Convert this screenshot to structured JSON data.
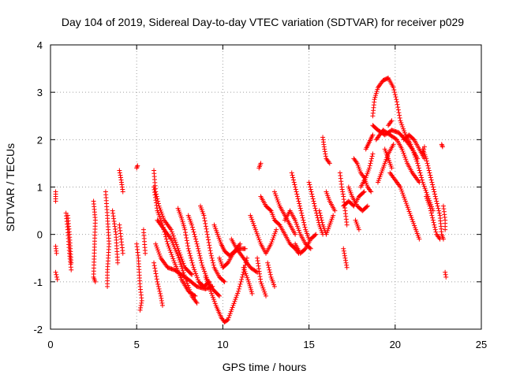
{
  "chart_data": {
    "type": "scatter",
    "title": "Day 104 of 2019, Sidereal Day-to-day VTEC variation (SDTVAR) for receiver p029",
    "xlabel": "GPS time / hours",
    "ylabel": "SDTVAR / TECUs",
    "xlim": [
      0,
      25
    ],
    "ylim": [
      -2,
      4
    ],
    "xticks": [
      0,
      5,
      10,
      15,
      20,
      25
    ],
    "yticks": [
      -2,
      -1,
      0,
      1,
      2,
      3,
      4
    ],
    "xtick_labels": [
      "0",
      "5",
      "10",
      "15",
      "20",
      "25"
    ],
    "ytick_labels": [
      "-2",
      "-1",
      "0",
      "1",
      "2",
      "3",
      "4"
    ],
    "grid": true,
    "marker": "+",
    "color": "#ff0000",
    "segments": [
      [
        [
          0.3,
          0.9
        ],
        [
          0.3,
          0.7
        ]
      ],
      [
        [
          0.3,
          -0.25
        ],
        [
          0.35,
          -0.4
        ]
      ],
      [
        [
          0.3,
          -0.8
        ],
        [
          0.4,
          -0.95
        ]
      ],
      [
        [
          0.9,
          0.45
        ],
        [
          1.0,
          0.1
        ],
        [
          1.1,
          -0.4
        ],
        [
          1.2,
          -0.75
        ]
      ],
      [
        [
          1.0,
          0.4
        ],
        [
          1.1,
          0.0
        ],
        [
          1.2,
          -0.6
        ]
      ],
      [
        [
          2.5,
          0.7
        ],
        [
          2.6,
          0.3
        ],
        [
          2.5,
          -0.9
        ],
        [
          2.6,
          -1.0
        ]
      ],
      [
        [
          3.2,
          0.9
        ],
        [
          3.3,
          0.4
        ],
        [
          3.4,
          -0.2
        ],
        [
          3.3,
          -0.8
        ],
        [
          3.3,
          -1.1
        ]
      ],
      [
        [
          3.6,
          0.5
        ],
        [
          3.8,
          0.0
        ],
        [
          3.9,
          -0.6
        ]
      ],
      [
        [
          4.0,
          1.35
        ],
        [
          4.1,
          1.15
        ],
        [
          4.2,
          0.9
        ]
      ],
      [
        [
          4.0,
          0.2
        ],
        [
          4.1,
          -0.1
        ],
        [
          4.2,
          -0.4
        ]
      ],
      [
        [
          5.0,
          1.4
        ],
        [
          5.05,
          1.45
        ]
      ],
      [
        [
          5.0,
          -0.2
        ],
        [
          5.1,
          -0.5
        ],
        [
          5.2,
          -1.1
        ],
        [
          5.3,
          -1.4
        ],
        [
          5.2,
          -1.6
        ]
      ],
      [
        [
          5.4,
          0.1
        ],
        [
          5.5,
          -0.4
        ]
      ],
      [
        [
          6.0,
          1.35
        ],
        [
          6.1,
          0.9
        ],
        [
          6.3,
          0.6
        ],
        [
          6.6,
          0.3
        ],
        [
          7.0,
          0.1
        ],
        [
          7.4,
          -0.3
        ],
        [
          7.8,
          -0.7
        ],
        [
          8.2,
          -0.85
        ]
      ],
      [
        [
          6.0,
          1.0
        ],
        [
          6.2,
          0.5
        ],
        [
          6.5,
          0.2
        ],
        [
          6.8,
          -0.2
        ],
        [
          7.2,
          -0.6
        ],
        [
          7.6,
          -0.95
        ],
        [
          8.0,
          -1.2
        ],
        [
          8.4,
          -1.3
        ]
      ],
      [
        [
          6.0,
          -0.6
        ],
        [
          6.2,
          -1.0
        ],
        [
          6.4,
          -1.3
        ],
        [
          6.5,
          -1.5
        ]
      ],
      [
        [
          6.1,
          -0.2
        ],
        [
          6.4,
          -0.5
        ],
        [
          6.8,
          -0.7
        ],
        [
          7.2,
          -0.75
        ],
        [
          7.6,
          -0.85
        ],
        [
          8.0,
          -0.95
        ],
        [
          8.5,
          -1.1
        ],
        [
          9.0,
          -1.15
        ],
        [
          9.4,
          -1.1
        ]
      ],
      [
        [
          6.2,
          0.3
        ],
        [
          6.6,
          0.1
        ],
        [
          7.0,
          -0.1
        ],
        [
          7.4,
          -0.45
        ],
        [
          7.8,
          -0.9
        ],
        [
          8.2,
          -1.3
        ],
        [
          8.5,
          -1.45
        ]
      ],
      [
        [
          7.4,
          0.55
        ],
        [
          7.6,
          0.35
        ],
        [
          7.8,
          0.1
        ],
        [
          8.0,
          -0.3
        ],
        [
          8.3,
          -0.7
        ],
        [
          8.6,
          -1.0
        ],
        [
          8.9,
          -1.1
        ],
        [
          9.2,
          -1.0
        ]
      ],
      [
        [
          8.0,
          0.4
        ],
        [
          8.2,
          0.2
        ],
        [
          8.5,
          -0.2
        ],
        [
          8.8,
          -0.65
        ],
        [
          9.1,
          -0.95
        ],
        [
          9.4,
          -1.15
        ],
        [
          9.8,
          -1.3
        ]
      ],
      [
        [
          8.7,
          0.6
        ],
        [
          8.9,
          0.4
        ],
        [
          9.1,
          0.0
        ],
        [
          9.3,
          -0.4
        ],
        [
          9.5,
          -0.7
        ],
        [
          9.8,
          -0.9
        ],
        [
          10.1,
          -1.0
        ]
      ],
      [
        [
          9.0,
          -0.9
        ],
        [
          9.3,
          -1.2
        ],
        [
          9.6,
          -1.5
        ],
        [
          9.9,
          -1.75
        ],
        [
          10.1,
          -1.85
        ],
        [
          10.3,
          -1.8
        ],
        [
          10.6,
          -1.5
        ],
        [
          10.9,
          -1.2
        ],
        [
          11.2,
          -0.8
        ],
        [
          11.4,
          -0.5
        ]
      ],
      [
        [
          9.5,
          0.2
        ],
        [
          9.7,
          0.0
        ],
        [
          9.9,
          -0.2
        ],
        [
          10.1,
          -0.35
        ],
        [
          10.4,
          -0.45
        ],
        [
          10.7,
          -0.35
        ],
        [
          11.0,
          -0.2
        ]
      ],
      [
        [
          9.8,
          -0.5
        ],
        [
          10.0,
          -0.7
        ],
        [
          10.3,
          -0.6
        ],
        [
          10.6,
          -0.4
        ],
        [
          10.9,
          -0.3
        ],
        [
          11.3,
          -0.3
        ]
      ],
      [
        [
          10.5,
          -0.1
        ],
        [
          10.8,
          -0.3
        ],
        [
          11.2,
          -0.5
        ],
        [
          11.6,
          -0.7
        ],
        [
          12.0,
          -0.8
        ]
      ],
      [
        [
          11.2,
          -0.7
        ],
        [
          11.5,
          -1.0
        ],
        [
          11.7,
          -1.25
        ]
      ],
      [
        [
          11.6,
          0.4
        ],
        [
          11.9,
          0.1
        ],
        [
          12.2,
          -0.2
        ],
        [
          12.5,
          -0.4
        ],
        [
          12.8,
          -0.2
        ],
        [
          13.1,
          0.1
        ]
      ],
      [
        [
          12.0,
          -0.5
        ],
        [
          12.2,
          -1.0
        ],
        [
          12.5,
          -1.3
        ]
      ],
      [
        [
          12.2,
          1.5
        ],
        [
          12.1,
          1.4
        ]
      ],
      [
        [
          12.2,
          0.8
        ],
        [
          12.5,
          0.6
        ],
        [
          12.8,
          0.5
        ],
        [
          13.0,
          0.3
        ],
        [
          13.3,
          0.2
        ],
        [
          13.6,
          0.0
        ],
        [
          13.9,
          -0.2
        ],
        [
          14.2,
          -0.3
        ],
        [
          14.4,
          -0.4
        ]
      ],
      [
        [
          12.6,
          -0.6
        ],
        [
          12.8,
          -0.9
        ],
        [
          13.0,
          -1.1
        ]
      ],
      [
        [
          13.0,
          0.9
        ],
        [
          13.3,
          0.6
        ],
        [
          13.6,
          0.4
        ],
        [
          13.9,
          0.2
        ],
        [
          14.2,
          0.0
        ]
      ],
      [
        [
          13.6,
          0.3
        ],
        [
          13.9,
          0.5
        ],
        [
          14.2,
          0.3
        ],
        [
          14.5,
          0.0
        ],
        [
          14.8,
          -0.2
        ],
        [
          15.1,
          -0.3
        ]
      ],
      [
        [
          14.0,
          1.3
        ],
        [
          14.2,
          1.0
        ],
        [
          14.4,
          0.7
        ],
        [
          14.6,
          0.4
        ],
        [
          14.8,
          0.1
        ],
        [
          15.0,
          -0.1
        ]
      ],
      [
        [
          14.2,
          -0.2
        ],
        [
          14.5,
          -0.4
        ],
        [
          14.8,
          -0.3
        ],
        [
          15.1,
          -0.1
        ],
        [
          15.4,
          0.0
        ]
      ],
      [
        [
          15.0,
          1.1
        ],
        [
          15.2,
          0.8
        ],
        [
          15.4,
          0.5
        ],
        [
          15.6,
          0.2
        ],
        [
          15.8,
          0.0
        ]
      ],
      [
        [
          15.6,
          0.5
        ],
        [
          15.8,
          0.2
        ],
        [
          16.0,
          0.0
        ],
        [
          16.2,
          0.2
        ],
        [
          16.4,
          0.4
        ]
      ],
      [
        [
          15.8,
          2.05
        ],
        [
          15.9,
          1.8
        ],
        [
          16.0,
          1.6
        ],
        [
          16.2,
          1.5
        ]
      ],
      [
        [
          16.0,
          0.9
        ],
        [
          16.2,
          0.7
        ],
        [
          16.5,
          0.5
        ]
      ],
      [
        [
          16.8,
          1.3
        ],
        [
          16.9,
          1.0
        ],
        [
          17.0,
          0.8
        ],
        [
          17.1,
          0.5
        ],
        [
          17.2,
          0.2
        ]
      ],
      [
        [
          17.0,
          -0.3
        ],
        [
          17.1,
          -0.5
        ],
        [
          17.2,
          -0.7
        ]
      ],
      [
        [
          17.0,
          0.6
        ],
        [
          17.3,
          0.7
        ],
        [
          17.6,
          0.6
        ],
        [
          17.9,
          0.8
        ],
        [
          18.2,
          0.9
        ]
      ],
      [
        [
          17.3,
          1.0
        ],
        [
          17.5,
          0.8
        ],
        [
          17.8,
          0.6
        ],
        [
          18.1,
          0.5
        ],
        [
          18.4,
          0.6
        ]
      ],
      [
        [
          17.6,
          1.6
        ],
        [
          17.8,
          1.5
        ],
        [
          18.0,
          1.3
        ],
        [
          18.2,
          1.2
        ],
        [
          18.4,
          1.0
        ],
        [
          18.6,
          0.9
        ]
      ],
      [
        [
          17.7,
          0.3
        ],
        [
          17.9,
          0.1
        ]
      ],
      [
        [
          18.0,
          1.0
        ],
        [
          18.3,
          1.2
        ],
        [
          18.5,
          1.4
        ],
        [
          18.7,
          1.7
        ]
      ],
      [
        [
          18.3,
          1.8
        ],
        [
          18.5,
          1.95
        ],
        [
          18.7,
          2.1
        ]
      ],
      [
        [
          18.7,
          2.5
        ],
        [
          18.8,
          2.85
        ],
        [
          19.0,
          3.1
        ],
        [
          19.3,
          3.25
        ],
        [
          19.6,
          3.3
        ],
        [
          19.9,
          3.1
        ],
        [
          20.1,
          2.8
        ],
        [
          20.3,
          2.4
        ],
        [
          20.6,
          2.1
        ],
        [
          20.9,
          1.9
        ],
        [
          21.3,
          1.5
        ],
        [
          21.6,
          1.1
        ],
        [
          21.9,
          0.8
        ],
        [
          22.2,
          0.5
        ]
      ],
      [
        [
          18.7,
          2.3
        ],
        [
          19.0,
          2.2
        ],
        [
          19.4,
          2.1
        ],
        [
          19.8,
          2.2
        ],
        [
          20.2,
          2.15
        ],
        [
          20.6,
          2.0
        ],
        [
          21.0,
          1.8
        ],
        [
          21.3,
          1.6
        ]
      ],
      [
        [
          18.9,
          2.0
        ],
        [
          19.3,
          2.2
        ],
        [
          19.7,
          2.1
        ],
        [
          20.1,
          2.0
        ],
        [
          20.4,
          1.8
        ],
        [
          20.7,
          1.5
        ],
        [
          21.0,
          1.3
        ],
        [
          21.4,
          1.1
        ]
      ],
      [
        [
          19.0,
          1.1
        ],
        [
          19.2,
          1.3
        ],
        [
          19.4,
          1.5
        ],
        [
          19.6,
          1.7
        ],
        [
          19.9,
          1.9
        ]
      ],
      [
        [
          19.4,
          1.8
        ],
        [
          19.6,
          1.6
        ],
        [
          19.8,
          1.4
        ]
      ],
      [
        [
          19.6,
          2.3
        ],
        [
          19.8,
          2.4
        ]
      ],
      [
        [
          19.7,
          1.3
        ],
        [
          20.0,
          1.15
        ],
        [
          20.3,
          1.0
        ],
        [
          20.6,
          0.7
        ],
        [
          20.9,
          0.4
        ],
        [
          21.2,
          0.1
        ],
        [
          21.4,
          -0.1
        ]
      ],
      [
        [
          20.5,
          2.0
        ],
        [
          20.8,
          2.1
        ],
        [
          21.1,
          2.0
        ],
        [
          21.4,
          1.8
        ],
        [
          21.7,
          1.6
        ]
      ],
      [
        [
          21.6,
          1.8
        ],
        [
          21.8,
          1.6
        ],
        [
          22.0,
          1.3
        ],
        [
          22.2,
          1.0
        ],
        [
          22.4,
          0.7
        ],
        [
          22.6,
          0.4
        ],
        [
          22.7,
          0.0
        ],
        [
          22.8,
          -0.1
        ]
      ],
      [
        [
          21.8,
          0.8
        ],
        [
          22.0,
          0.6
        ],
        [
          22.2,
          0.3
        ],
        [
          22.4,
          0.0
        ],
        [
          22.6,
          -0.1
        ]
      ],
      [
        [
          21.6,
          1.7
        ],
        [
          21.7,
          1.85
        ]
      ],
      [
        [
          22.7,
          1.9
        ],
        [
          22.75,
          1.85
        ]
      ],
      [
        [
          22.8,
          0.6
        ],
        [
          22.9,
          0.3
        ],
        [
          22.9,
          0.1
        ]
      ],
      [
        [
          22.9,
          -0.8
        ],
        [
          22.95,
          -0.9
        ]
      ]
    ]
  }
}
